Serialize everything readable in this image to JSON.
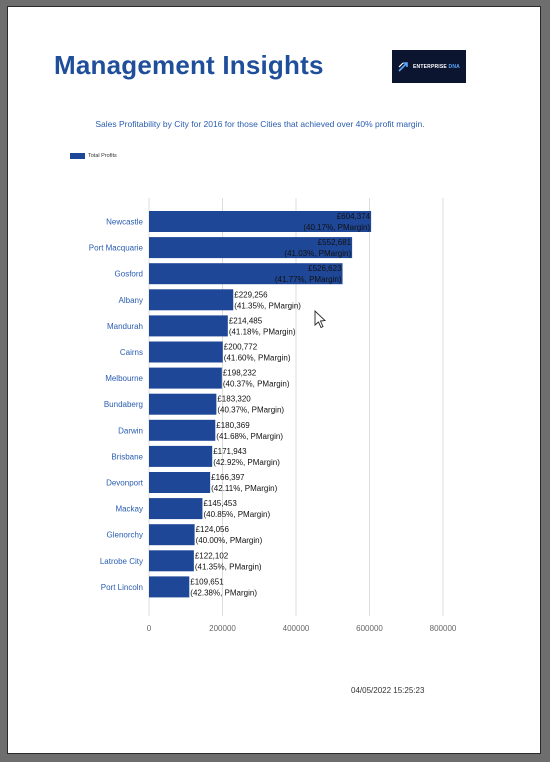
{
  "report": {
    "title": "Management Insights",
    "logo_text_main": "ENTERPRISE",
    "logo_text_accent": "DNA",
    "timestamp": "04/05/2022 15:25:23"
  },
  "colors": {
    "bar": "#1f4797",
    "title": "#1f4e9a",
    "category_label": "#2a5db0"
  },
  "icons": [
    "arrow-logo-icon",
    "mouse-cursor-icon"
  ],
  "chart_data": {
    "type": "bar",
    "orientation": "horizontal",
    "title": "Sales Profitability by City for 2016 for those Cities that achieved over 40% profit margin.",
    "xlabel": "",
    "ylabel": "",
    "xlim": [
      0,
      800000
    ],
    "x_ticks": [
      "0",
      "200000",
      "400000",
      "600000",
      "800000"
    ],
    "grid": true,
    "legend_position": "top-left",
    "categories": [
      "Newcastle",
      "Port Macquarie",
      "Gosford",
      "Albany",
      "Mandurah",
      "Cairns",
      "Melbourne",
      "Bundaberg",
      "Darwin",
      "Brisbane",
      "Devonport",
      "Mackay",
      "Glenorchy",
      "Latrobe City",
      "Port Lincoln"
    ],
    "series": [
      {
        "name": "Total Profits",
        "values": [
          604374,
          552681,
          526623,
          229256,
          214485,
          200772,
          198232,
          183320,
          180369,
          171943,
          166397,
          145453,
          124056,
          122102,
          109651
        ]
      }
    ],
    "data_labels": [
      [
        "£604,374",
        "(40.17%, PMargin)"
      ],
      [
        "£552,681",
        "(41.03%, PMargin)"
      ],
      [
        "£526,623",
        "(41.77%, PMargin)"
      ],
      [
        "£229,256",
        "(41.35%, PMargin)"
      ],
      [
        "£214,485",
        "(41.18%, PMargin)"
      ],
      [
        "£200,772",
        "(41.60%, PMargin)"
      ],
      [
        "£198,232",
        "(40.37%, PMargin)"
      ],
      [
        "£183,320",
        "(40.37%, PMargin)"
      ],
      [
        "£180,369",
        "(41.68%, PMargin)"
      ],
      [
        "£171,943",
        "(42.92%, PMargin)"
      ],
      [
        "£166,397",
        "(42.11%, PMargin)"
      ],
      [
        "£145,453",
        "(40.85%, PMargin)"
      ],
      [
        "£124,056",
        "(40.00%, PMargin)"
      ],
      [
        "£122,102",
        "(41.35%, PMargin)"
      ],
      [
        "£109,651",
        "(42.38%, PMargin)"
      ]
    ]
  }
}
